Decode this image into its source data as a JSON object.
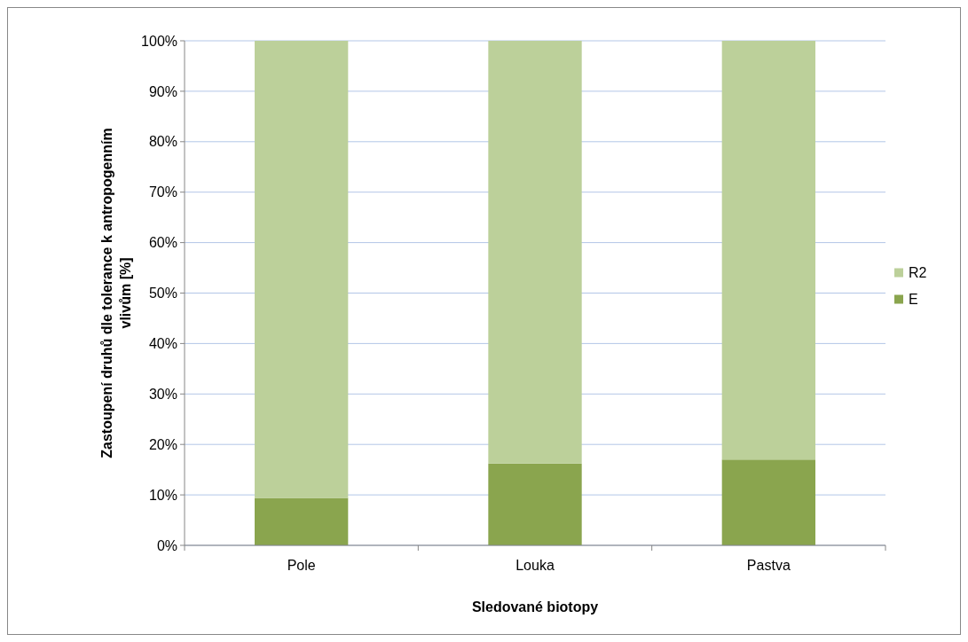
{
  "chart_data": {
    "type": "bar",
    "stacked": true,
    "xlabel": "Sledované biotopy",
    "ylabel": "Zastoupení druhů dle tolerance k antropogenním vlivům [%]",
    "categories": [
      "Pole",
      "Louka",
      "Pastva"
    ],
    "series": [
      {
        "name": "E",
        "color": "#8aa54e",
        "values": [
          9.4,
          16.2,
          17.0
        ]
      },
      {
        "name": "R2",
        "color": "#bcd09a",
        "values": [
          90.6,
          83.8,
          83.0
        ]
      }
    ],
    "ylim": [
      0,
      100
    ],
    "yticks": [
      {
        "value": 0,
        "label": "0%"
      },
      {
        "value": 10,
        "label": "10%"
      },
      {
        "value": 20,
        "label": "20%"
      },
      {
        "value": 30,
        "label": "30%"
      },
      {
        "value": 40,
        "label": "40%"
      },
      {
        "value": 50,
        "label": "50%"
      },
      {
        "value": 60,
        "label": "60%"
      },
      {
        "value": 70,
        "label": "70%"
      },
      {
        "value": 80,
        "label": "80%"
      },
      {
        "value": 90,
        "label": "90%"
      },
      {
        "value": 100,
        "label": "100%"
      }
    ],
    "grid": "y",
    "legend": "right"
  }
}
